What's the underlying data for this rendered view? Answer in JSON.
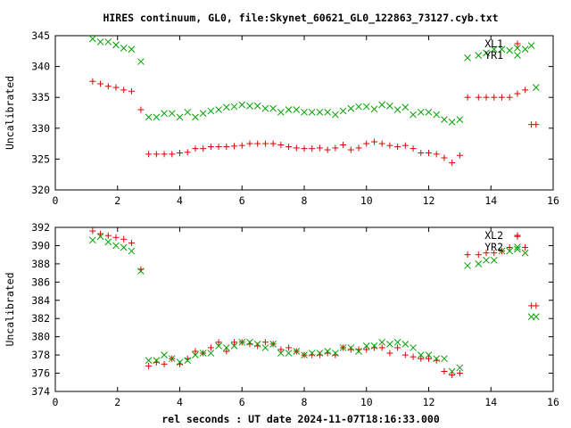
{
  "title": "HIRES continuum, GL0, file:Skynet_60621_GL0_122863_73127.cyb.txt",
  "xlabel": "rel seconds : UT date 2024-11-07T18:16:33.000",
  "chart_data": [
    {
      "type": "scatter",
      "ylabel": "Uncalibrated",
      "xlim": [
        0,
        16
      ],
      "ylim": [
        320,
        345
      ],
      "xticks": [
        "0",
        "2",
        "4",
        "6",
        "8",
        "10",
        "12",
        "14",
        "16"
      ],
      "yticks": [
        "320",
        "325",
        "330",
        "335",
        "340",
        "345"
      ],
      "grid": false,
      "legend": "top-right",
      "series": [
        {
          "name": "XL1",
          "marker": "+",
          "color": "#e00000",
          "x": [
            1.2,
            1.45,
            1.7,
            1.95,
            2.2,
            2.45,
            2.75,
            3.0,
            3.25,
            3.5,
            3.75,
            4.0,
            4.25,
            4.5,
            4.75,
            5.0,
            5.25,
            5.5,
            5.75,
            6.0,
            6.25,
            6.5,
            6.75,
            7.0,
            7.25,
            7.5,
            7.75,
            8.0,
            8.25,
            8.5,
            8.75,
            9.0,
            9.25,
            9.5,
            9.75,
            10.0,
            10.25,
            10.5,
            10.75,
            11.0,
            11.25,
            11.5,
            11.75,
            12.0,
            12.25,
            12.5,
            12.75,
            13.0,
            13.25,
            13.6,
            13.85,
            14.1,
            14.35,
            14.6,
            14.85,
            15.1,
            15.3,
            15.45
          ],
          "y": [
            337.6,
            337.2,
            336.8,
            336.6,
            336.2,
            336.0,
            333.0,
            325.8,
            325.8,
            325.8,
            325.8,
            326.0,
            326.1,
            326.7,
            326.7,
            327.0,
            327.0,
            327.0,
            327.1,
            327.2,
            327.5,
            327.5,
            327.5,
            327.5,
            327.3,
            327.0,
            326.8,
            326.7,
            326.7,
            326.8,
            326.5,
            326.8,
            327.3,
            326.5,
            326.8,
            327.5,
            327.8,
            327.5,
            327.2,
            327.0,
            327.2,
            326.7,
            326.0,
            326.0,
            325.8,
            325.2,
            324.4,
            325.6,
            335.0,
            335.0,
            335.0,
            335.0,
            335.0,
            335.0,
            335.6,
            336.2,
            330.6,
            330.6
          ]
        },
        {
          "name": "YR1",
          "marker": "x",
          "color": "#00a000",
          "x": [
            1.2,
            1.45,
            1.7,
            1.95,
            2.2,
            2.45,
            2.75,
            3.0,
            3.25,
            3.5,
            3.75,
            4.0,
            4.25,
            4.5,
            4.75,
            5.0,
            5.25,
            5.5,
            5.75,
            6.0,
            6.25,
            6.5,
            6.75,
            7.0,
            7.25,
            7.5,
            7.75,
            8.0,
            8.25,
            8.5,
            8.75,
            9.0,
            9.25,
            9.5,
            9.75,
            10.0,
            10.25,
            10.5,
            10.75,
            11.0,
            11.25,
            11.5,
            11.75,
            12.0,
            12.25,
            12.5,
            12.75,
            13.0,
            13.25,
            13.6,
            13.85,
            14.1,
            14.35,
            14.6,
            14.85,
            15.1,
            15.3,
            15.45
          ],
          "y": [
            344.5,
            344.0,
            344.0,
            343.5,
            343.0,
            342.8,
            340.8,
            331.8,
            331.8,
            332.4,
            332.4,
            331.8,
            332.6,
            331.8,
            332.4,
            332.8,
            333.0,
            333.4,
            333.5,
            333.8,
            333.6,
            333.6,
            333.2,
            333.2,
            332.6,
            333.0,
            333.0,
            332.6,
            332.6,
            332.6,
            332.6,
            332.2,
            332.8,
            333.2,
            333.5,
            333.5,
            333.1,
            333.8,
            333.6,
            333.0,
            333.4,
            332.2,
            332.6,
            332.6,
            332.2,
            331.4,
            331.0,
            331.4,
            341.4,
            341.8,
            342.2,
            342.8,
            342.8,
            342.6,
            343.0,
            342.8,
            343.4,
            336.6
          ]
        }
      ]
    },
    {
      "type": "scatter",
      "ylabel": "Uncalibrated",
      "xlim": [
        0,
        16
      ],
      "ylim": [
        374,
        392
      ],
      "xticks": [
        "0",
        "2",
        "4",
        "6",
        "8",
        "10",
        "12",
        "14",
        "16"
      ],
      "yticks": [
        "374",
        "376",
        "378",
        "380",
        "382",
        "384",
        "386",
        "388",
        "390",
        "392"
      ],
      "grid": false,
      "legend": "top-right",
      "series": [
        {
          "name": "XL2",
          "marker": "+",
          "color": "#e00000",
          "x": [
            1.2,
            1.45,
            1.7,
            1.95,
            2.2,
            2.45,
            2.75,
            3.0,
            3.25,
            3.5,
            3.75,
            4.0,
            4.25,
            4.5,
            4.75,
            5.0,
            5.25,
            5.5,
            5.75,
            6.0,
            6.25,
            6.5,
            6.75,
            7.0,
            7.25,
            7.5,
            7.75,
            8.0,
            8.25,
            8.5,
            8.75,
            9.0,
            9.25,
            9.5,
            9.75,
            10.0,
            10.25,
            10.5,
            10.75,
            11.0,
            11.25,
            11.5,
            11.75,
            12.0,
            12.25,
            12.5,
            12.75,
            13.0,
            13.25,
            13.6,
            13.85,
            14.1,
            14.35,
            14.6,
            14.85,
            15.1,
            15.3,
            15.45
          ],
          "y": [
            391.6,
            391.3,
            391.1,
            390.9,
            390.7,
            390.3,
            387.4,
            376.8,
            377.2,
            377.0,
            377.6,
            377.0,
            377.6,
            378.4,
            378.2,
            378.8,
            379.4,
            378.4,
            379.4,
            379.4,
            379.2,
            379.0,
            379.4,
            379.2,
            378.6,
            378.8,
            378.4,
            378.0,
            378.0,
            378.0,
            378.2,
            378.0,
            378.8,
            378.6,
            378.6,
            378.6,
            378.8,
            378.8,
            378.2,
            378.8,
            378.0,
            377.8,
            377.6,
            377.6,
            377.4,
            376.2,
            375.8,
            376.0,
            389.0,
            389.0,
            389.2,
            389.2,
            389.4,
            389.8,
            391.0,
            389.8,
            383.4,
            383.4
          ]
        },
        {
          "name": "YR2",
          "marker": "x",
          "color": "#00a000",
          "x": [
            1.2,
            1.45,
            1.7,
            1.95,
            2.2,
            2.45,
            2.75,
            3.0,
            3.25,
            3.5,
            3.75,
            4.0,
            4.25,
            4.5,
            4.75,
            5.0,
            5.25,
            5.5,
            5.75,
            6.0,
            6.25,
            6.5,
            6.75,
            7.0,
            7.25,
            7.5,
            7.75,
            8.0,
            8.25,
            8.5,
            8.75,
            9.0,
            9.25,
            9.5,
            9.75,
            10.0,
            10.25,
            10.5,
            10.75,
            11.0,
            11.25,
            11.5,
            11.75,
            12.0,
            12.25,
            12.5,
            12.75,
            13.0,
            13.25,
            13.6,
            13.85,
            14.1,
            14.35,
            14.6,
            14.85,
            15.1,
            15.3,
            15.45
          ],
          "y": [
            390.6,
            391.0,
            390.4,
            390.0,
            389.8,
            389.4,
            387.2,
            377.4,
            377.4,
            378.0,
            377.6,
            377.2,
            377.4,
            378.0,
            378.2,
            378.2,
            379.0,
            378.8,
            379.0,
            379.4,
            379.4,
            379.2,
            378.8,
            379.2,
            378.2,
            378.2,
            378.4,
            378.0,
            378.2,
            378.2,
            378.4,
            378.2,
            378.8,
            378.8,
            378.4,
            379.0,
            379.0,
            379.4,
            379.2,
            379.4,
            379.2,
            378.8,
            378.0,
            378.0,
            377.6,
            377.6,
            376.2,
            376.6,
            387.8,
            388.0,
            388.4,
            388.4,
            389.4,
            389.4,
            389.6,
            389.2,
            382.2,
            382.2
          ]
        }
      ]
    }
  ]
}
